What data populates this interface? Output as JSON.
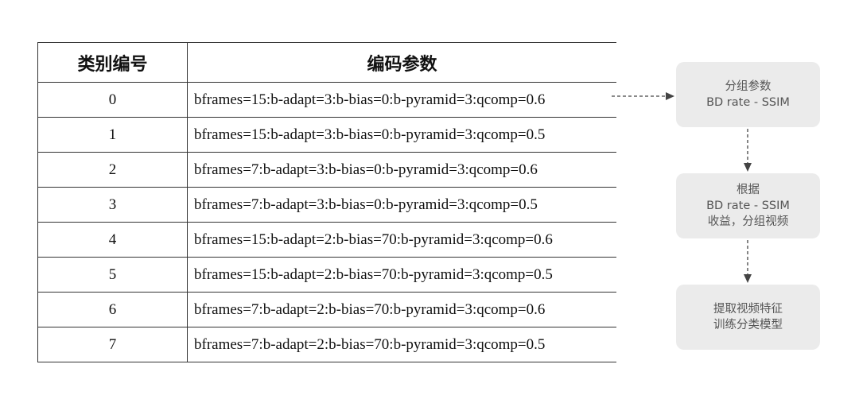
{
  "table": {
    "headers": [
      "类别编号",
      "编码参数"
    ],
    "rows": [
      {
        "id": "0",
        "params": "bframes=15:b-adapt=3:b-bias=0:b-pyramid=3:qcomp=0.6"
      },
      {
        "id": "1",
        "params": "bframes=15:b-adapt=3:b-bias=0:b-pyramid=3:qcomp=0.5"
      },
      {
        "id": "2",
        "params": "bframes=7:b-adapt=3:b-bias=0:b-pyramid=3:qcomp=0.6"
      },
      {
        "id": "3",
        "params": "bframes=7:b-adapt=3:b-bias=0:b-pyramid=3:qcomp=0.5"
      },
      {
        "id": "4",
        "params": "bframes=15:b-adapt=2:b-bias=70:b-pyramid=3:qcomp=0.6"
      },
      {
        "id": "5",
        "params": "bframes=15:b-adapt=2:b-bias=70:b-pyramid=3:qcomp=0.5"
      },
      {
        "id": "6",
        "params": "bframes=7:b-adapt=2:b-bias=70:b-pyramid=3:qcomp=0.6"
      },
      {
        "id": "7",
        "params": "bframes=7:b-adapt=2:b-bias=70:b-pyramid=3:qcomp=0.5"
      }
    ]
  },
  "flow": {
    "steps": [
      {
        "lines": [
          "分组参数",
          "BD rate - SSIM"
        ]
      },
      {
        "lines": [
          "根据",
          "BD rate - SSIM",
          "收益，分组视频"
        ]
      },
      {
        "lines": [
          "提取视频特征",
          "训练分类模型"
        ]
      }
    ]
  }
}
